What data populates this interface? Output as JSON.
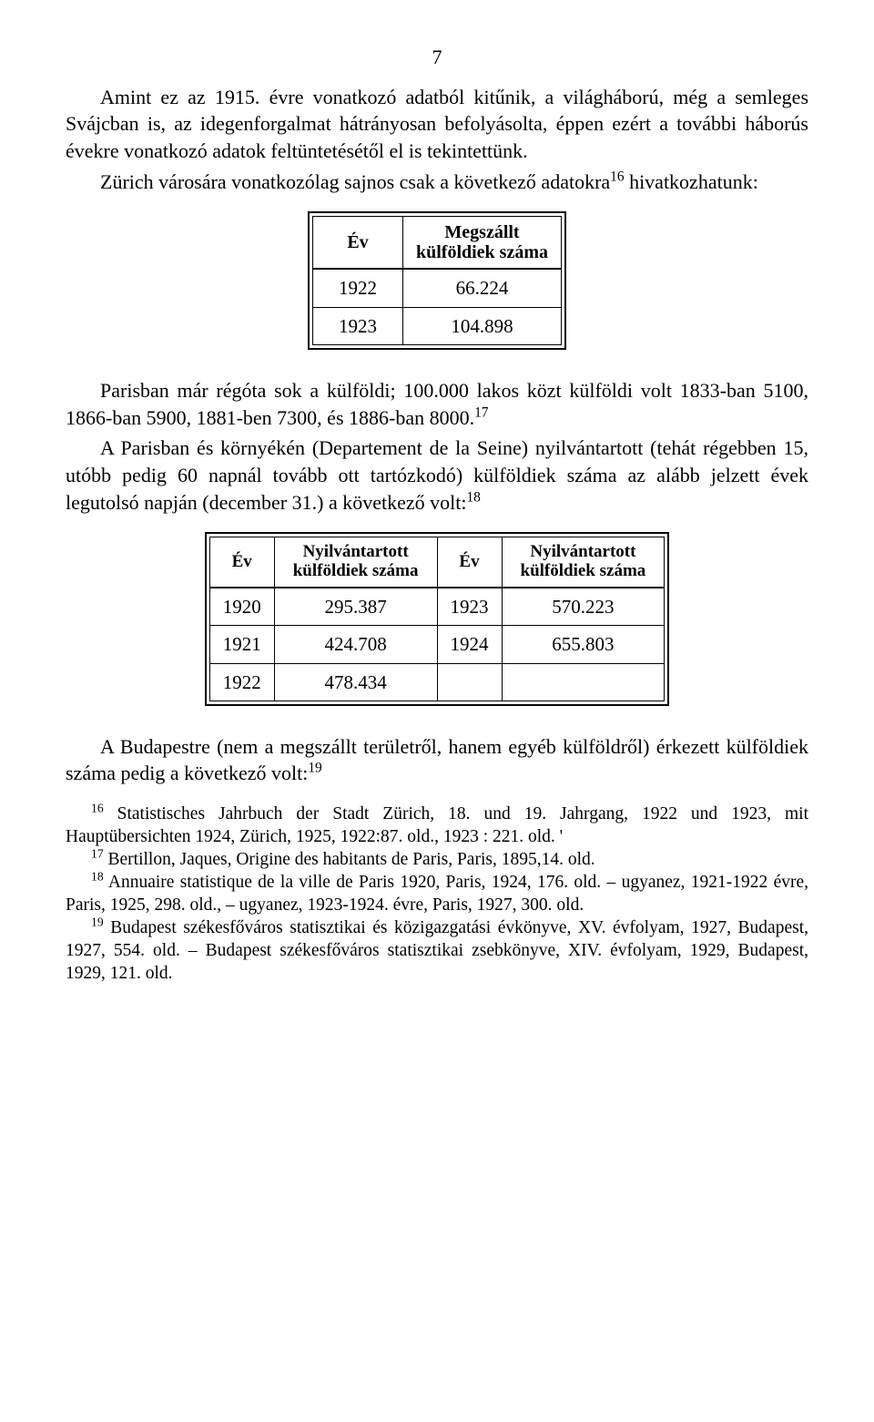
{
  "page_number": "7",
  "para1_a": "Amint ez az 1915. évre vonatkozó adatból kitűnik, a világháború, még a semleges Svájcban is, az idegenforgalmat hátrányosan befolyásolta, éppen ezért a további háborús évekre vonatkozó adatok feltüntetésétől el is tekintettünk.",
  "para1_b_pre": "Zürich városára vonatkozólag sajnos csak a következő adatokra",
  "para1_b_sup": "16",
  "para1_b_post": " hivatkozhatunk:",
  "table1": {
    "col1_header": "Év",
    "col2_header_l1": "Megszállt",
    "col2_header_l2": "külföldiek száma",
    "rows": [
      {
        "year": "1922",
        "value": "66.224"
      },
      {
        "year": "1923",
        "value": "104.898"
      }
    ]
  },
  "para2_a": "Parisban már régóta sok a külföldi; 100.000 lakos közt külföldi volt 1833-ban 5100, 1866-ban 5900, 1881-ben 7300, és 1886-ban 8000.",
  "para2_a_sup": "17",
  "para2_b": "A Parisban és környékén (Departement de la Seine) nyilvántartott (tehát régebben 15, utóbb pedig 60 napnál tovább ott tartózkodó) külföldiek száma az alább jelzett évek legutolsó napján (december 31.) a következő volt:",
  "para2_b_sup": "18",
  "table2": {
    "col_ev": "Év",
    "col_val_l1": "Nyilvántartott",
    "col_val_l2": "külföldiek száma",
    "left_rows": [
      {
        "year": "1920",
        "value": "295.387"
      },
      {
        "year": "1921",
        "value": "424.708"
      },
      {
        "year": "1922",
        "value": "478.434"
      }
    ],
    "right_rows": [
      {
        "year": "1923",
        "value": "570.223"
      },
      {
        "year": "1924",
        "value": "655.803"
      },
      {
        "year": "",
        "value": ""
      }
    ]
  },
  "para3": "A Budapestre (nem a megszállt területről, hanem egyéb külföldről) érkezett külföldiek száma pedig a következő volt:",
  "para3_sup": "19",
  "footnotes": {
    "fn16_sup": "16",
    "fn16_a": " Statistisches Jahrbuch der Stadt Zürich, 18. und 19. Jahrgang, 1922 und 1923, mit Hauptübersichten 1924, Zürich, 1925, 1922:87. old., 1923 : 221. old.    '",
    "fn17_sup": "17",
    "fn17": " Bertillon, Jaques, Origine des habitants de Paris, Paris, 1895,14. old.",
    "fn18_sup": "18",
    "fn18": " Annuaire statistique de la ville de Paris 1920, Paris, 1924, 176. old. – ugyanez, 1921-1922 évre, Paris, 1925, 298. old., – ugyanez, 1923-1924. évre, Paris, 1927, 300. old.",
    "fn19_sup": "19",
    "fn19": " Budapest székesfőváros statisztikai és közigazgatási évkönyve, XV. évfolyam, 1927, Budapest, 1927, 554. old. – Budapest székesfőváros statisztikai zsebkönyve, XIV. évfolyam, 1929, Budapest, 1929, 121. old."
  }
}
